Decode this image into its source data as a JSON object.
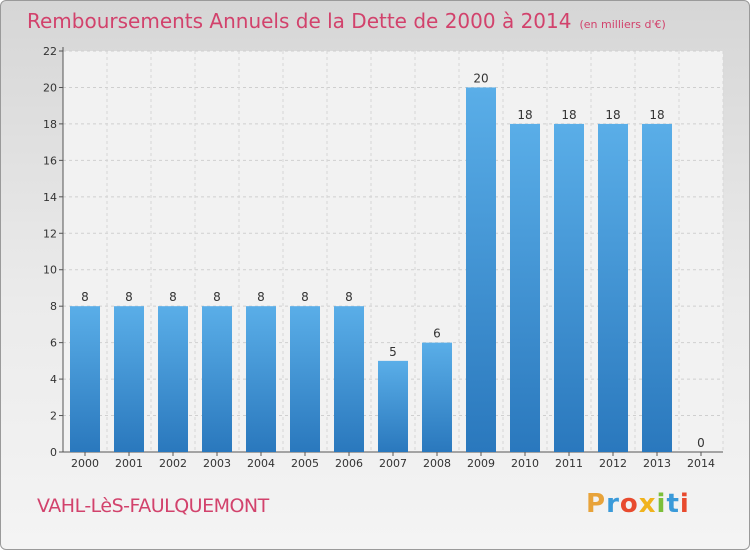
{
  "header": {
    "title": "Remboursements Annuels de la Dette de 2000 à 2014",
    "subtitle": "(en milliers d'€)"
  },
  "footer": {
    "commune": "VAHL-LèS-FAULQUEMONT",
    "logo_letters": [
      "P",
      "r",
      "o",
      "x",
      "i",
      "t",
      "i"
    ],
    "logo_colors": [
      "#e8a33a",
      "#3a9ad9",
      "#e84a2e",
      "#f0b31c",
      "#7cbf3a",
      "#3a9ad9",
      "#e84a2e"
    ]
  },
  "chart_data": {
    "type": "bar",
    "title": "Remboursements Annuels de la Dette de 2000 à 2014",
    "subtitle": "(en milliers d'€)",
    "categories": [
      "2000",
      "2001",
      "2002",
      "2003",
      "2004",
      "2005",
      "2006",
      "2007",
      "2008",
      "2009",
      "2010",
      "2011",
      "2012",
      "2013",
      "2014"
    ],
    "values": [
      8,
      8,
      8,
      8,
      8,
      8,
      8,
      5,
      6,
      20,
      18,
      18,
      18,
      18,
      0
    ],
    "ylim": [
      0,
      22
    ],
    "yticks": [
      0,
      2,
      4,
      6,
      8,
      10,
      12,
      14,
      16,
      18,
      20,
      22
    ],
    "grid": true,
    "bar_color": "#3a8fd6"
  }
}
